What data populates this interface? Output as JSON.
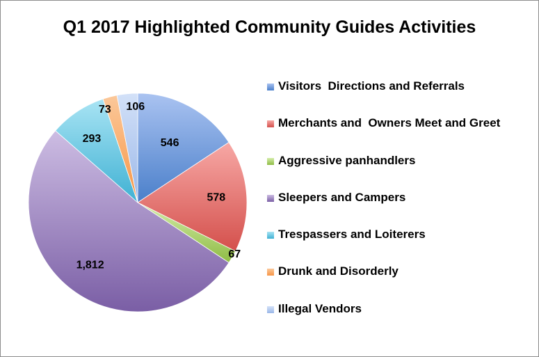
{
  "chart_data": {
    "type": "pie",
    "title": "Q1 2017 Highlighted Community Guides Activities",
    "start_angle_deg": 0,
    "direction": "clockwise",
    "legend_position": "right",
    "slices": [
      {
        "name": "Visitors  Directions and Referrals",
        "value": 546,
        "label": "546",
        "color": "#4a7fca",
        "color_light": "#aac3f1"
      },
      {
        "name": "Merchants and  Owners Meet and Greet",
        "value": 578,
        "label": "578",
        "color": "#d4504c",
        "color_light": "#f7a8a5"
      },
      {
        "name": "Aggressive panhandlers",
        "value": 67,
        "label": "67",
        "color": "#8fbc45",
        "color_light": "#d4edaa"
      },
      {
        "name": "Sleepers and Campers",
        "value": 1812,
        "label": "1,812",
        "color": "#7a5ea5",
        "color_light": "#cdbde3"
      },
      {
        "name": "Trespassers and Loiterers",
        "value": 293,
        "label": "293",
        "color": "#3fb1d3",
        "color_light": "#a9e4f4"
      },
      {
        "name": "Drunk and Disorderly",
        "value": 73,
        "label": "73",
        "color": "#f79646",
        "color_light": "#fbc89a"
      },
      {
        "name": "Illegal Vendors",
        "value": 106,
        "label": "106",
        "color": "#9ab7e8",
        "color_light": "#d3e1f8"
      }
    ]
  }
}
